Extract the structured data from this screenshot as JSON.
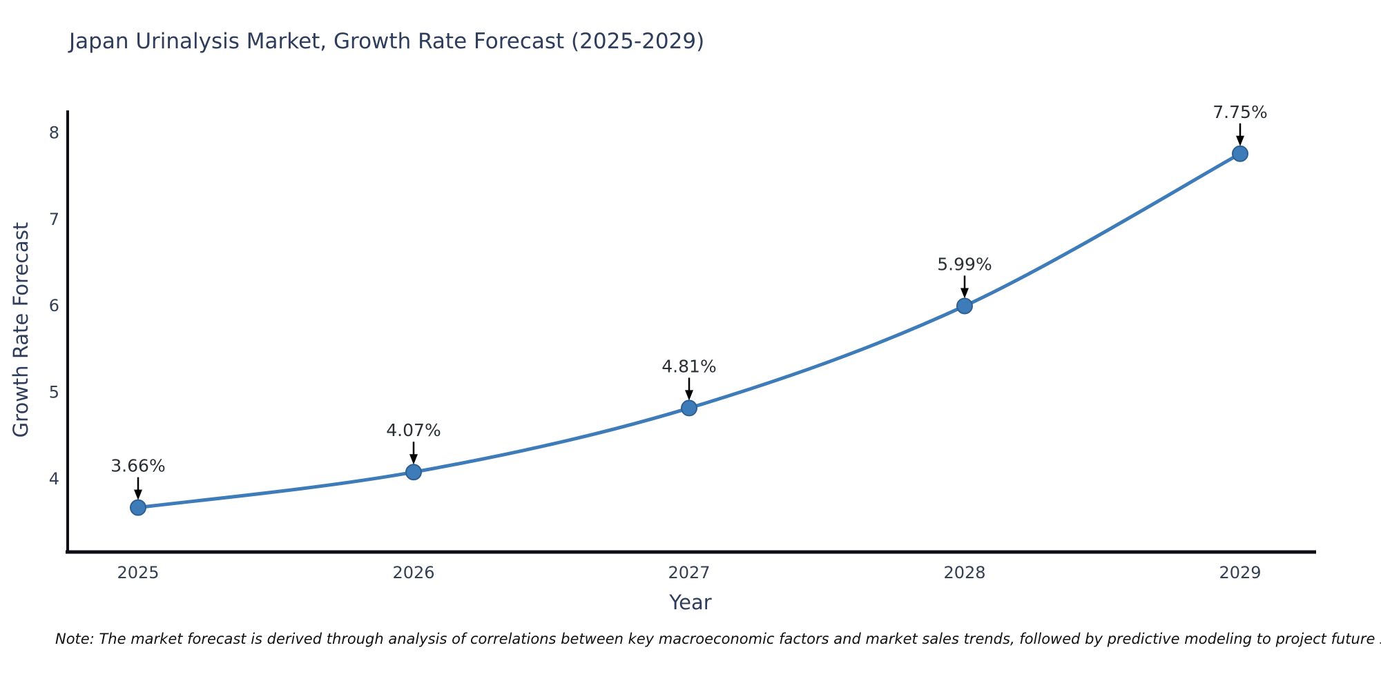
{
  "chart_data": {
    "type": "line",
    "title": "Japan Urinalysis Market, Growth Rate Forecast (2025-2029)",
    "xlabel": "Year",
    "ylabel": "Growth Rate Forecast",
    "categories": [
      2025,
      2026,
      2027,
      2028,
      2029
    ],
    "series": [
      {
        "name": "Growth Rate Forecast (%)",
        "values": [
          3.66,
          4.07,
          4.81,
          5.99,
          7.75
        ]
      }
    ],
    "point_labels": [
      "3.66%",
      "4.07%",
      "4.81%",
      "5.99%",
      "7.75%"
    ],
    "y_ticks": [
      4,
      5,
      6,
      7,
      8
    ],
    "ylim": [
      3.15,
      8.35
    ],
    "grid": false,
    "legend_position": "none",
    "line_color": "#3e7cb9",
    "marker_edge_color": "#2d5f92",
    "axis_color": "#0e0e16",
    "annotation_arrow_color": "#000000",
    "text_color": "#2e3d5c"
  },
  "note": "Note: The market forecast is derived through analysis of correlations between key macroeconomic factors and market sales trends, followed by predictive modeling to project future sales."
}
